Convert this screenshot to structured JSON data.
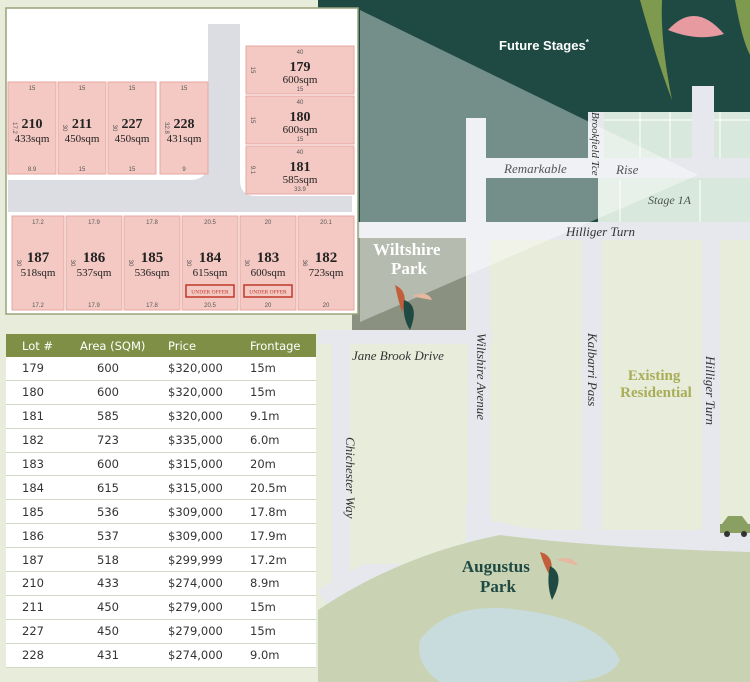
{
  "colors": {
    "dark_green": "#1f4a43",
    "stage_green": "#d9e8dc",
    "lot_pink": "#f4c9c3",
    "lot_border": "#e8a8a1",
    "road": "#e6e8ed",
    "land": "#e8ecdb",
    "park_grey": "#8a9180",
    "header_olive": "#7f8f45",
    "under_offer_red": "#c0392b",
    "water": "#c9dcdd"
  },
  "map": {
    "future_stages": "Future Stages",
    "future_stages_mark": "*",
    "stage_label": "Stage 1A",
    "streets": {
      "remarkable": "Remarkable",
      "rise": "Rise",
      "brookfield": "Brookfield Tce",
      "hilliger_turn_top": "Hilliger Turn",
      "hilliger_turn_side": "Hilliger Turn",
      "jane_brook": "Jane Brook Drive",
      "wiltshire_avenue": "Wiltshire Avenue",
      "kalbarri_pass": "Kalbarri Pass",
      "chichester_way": "Chichester Way"
    },
    "wiltshire_park": [
      "Wiltshire",
      "Park"
    ],
    "augustus_park": [
      "Augustus",
      "Park"
    ],
    "existing_residential": [
      "Existing",
      "Residential"
    ],
    "car_icon": "car-icon"
  },
  "inset": {
    "under_offer": "UNDER OFFER",
    "top_lots": [
      {
        "number": "210",
        "area": "433sqm",
        "edges": [
          "15",
          "17.2",
          "8.9"
        ]
      },
      {
        "number": "211",
        "area": "450sqm",
        "edges": [
          "15",
          "30",
          "15"
        ]
      },
      {
        "number": "227",
        "area": "450sqm",
        "edges": [
          "15",
          "30",
          "15"
        ]
      },
      {
        "number": "228",
        "area": "431sqm",
        "edges": [
          "15",
          "32.8",
          "9"
        ]
      }
    ],
    "right_lots": [
      {
        "number": "179",
        "area": "600sqm",
        "edges": [
          "40",
          "15",
          "15"
        ]
      },
      {
        "number": "180",
        "area": "600sqm",
        "edges": [
          "40",
          "15",
          "15"
        ]
      },
      {
        "number": "181",
        "area": "585sqm",
        "edges": [
          "40",
          "9.1",
          "33.9"
        ]
      }
    ],
    "bottom_lots": [
      {
        "number": "187",
        "area": "518sqm",
        "edges": [
          "17.2",
          "30",
          "17.2"
        ],
        "under_offer": false
      },
      {
        "number": "186",
        "area": "537sqm",
        "edges": [
          "17.9",
          "30",
          "17.9"
        ],
        "under_offer": false
      },
      {
        "number": "185",
        "area": "536sqm",
        "edges": [
          "17.8",
          "30",
          "17.8"
        ],
        "under_offer": false
      },
      {
        "number": "184",
        "area": "615sqm",
        "edges": [
          "20.5",
          "30",
          "20.5"
        ],
        "under_offer": true
      },
      {
        "number": "183",
        "area": "600sqm",
        "edges": [
          "20",
          "30",
          "20"
        ],
        "under_offer": true
      },
      {
        "number": "182",
        "area": "723sqm",
        "edges": [
          "20.1",
          "36",
          "20"
        ],
        "under_offer": false
      }
    ]
  },
  "table": {
    "headers": [
      "Lot #",
      "Area (SQM)",
      "Price",
      "Frontage"
    ],
    "rows": [
      [
        "179",
        "600",
        "$320,000",
        "15m"
      ],
      [
        "180",
        "600",
        "$320,000",
        "15m"
      ],
      [
        "181",
        "585",
        "$320,000",
        "9.1m"
      ],
      [
        "182",
        "723",
        "$335,000",
        "6.0m"
      ],
      [
        "183",
        "600",
        "$315,000",
        "20m"
      ],
      [
        "184",
        "615",
        "$315,000",
        "20.5m"
      ],
      [
        "185",
        "536",
        "$309,000",
        "17.8m"
      ],
      [
        "186",
        "537",
        "$309,000",
        "17.9m"
      ],
      [
        "187",
        "518",
        "$299,999",
        "17.2m"
      ],
      [
        "210",
        "433",
        "$274,000",
        "8.9m"
      ],
      [
        "211",
        "450",
        "$279,000",
        "15m"
      ],
      [
        "227",
        "450",
        "$279,000",
        "15m"
      ],
      [
        "228",
        "431",
        "$274,000",
        "9.0m"
      ]
    ]
  }
}
